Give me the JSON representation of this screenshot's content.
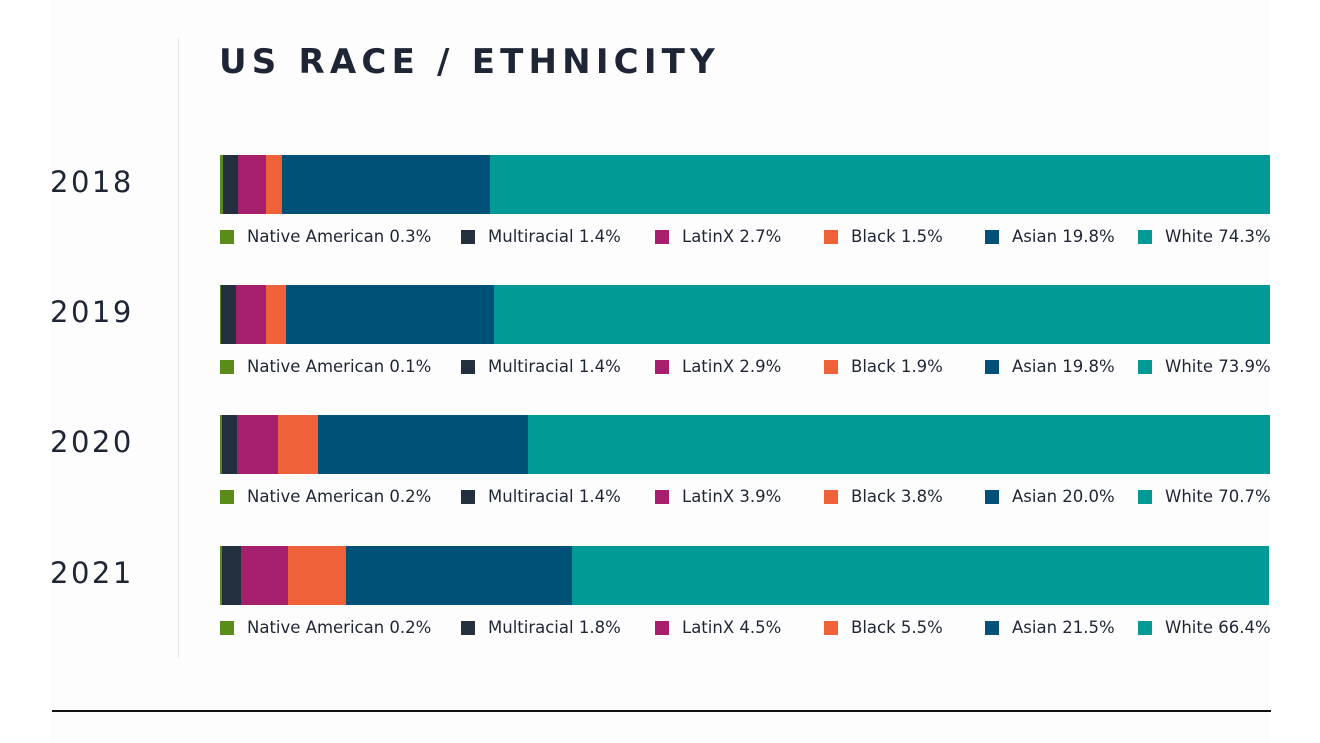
{
  "chart_data": {
    "type": "bar",
    "orientation": "horizontal-stacked-100",
    "title": "US RACE / ETHNICITY",
    "xlabel": "",
    "ylabel": "",
    "unit": "%",
    "xlim": [
      0,
      100
    ],
    "grid": false,
    "legend_placement": "below-each-bar",
    "categories": [
      "2018",
      "2019",
      "2020",
      "2021"
    ],
    "series": [
      {
        "name": "Native American",
        "color": "#5b8c1a",
        "values": [
          0.3,
          0.1,
          0.2,
          0.2
        ]
      },
      {
        "name": "Multiracial",
        "color": "#232f3e",
        "values": [
          1.4,
          1.4,
          1.4,
          1.8
        ]
      },
      {
        "name": "LatinX",
        "color": "#a61f6d",
        "values": [
          2.7,
          2.9,
          3.9,
          4.5
        ]
      },
      {
        "name": "Black",
        "color": "#ef6239",
        "values": [
          1.5,
          1.9,
          3.8,
          5.5
        ]
      },
      {
        "name": "Asian",
        "color": "#005177",
        "values": [
          19.8,
          19.8,
          20.0,
          21.5
        ]
      },
      {
        "name": "White",
        "color": "#019a97",
        "values": [
          74.3,
          73.9,
          70.7,
          66.4
        ]
      }
    ]
  }
}
